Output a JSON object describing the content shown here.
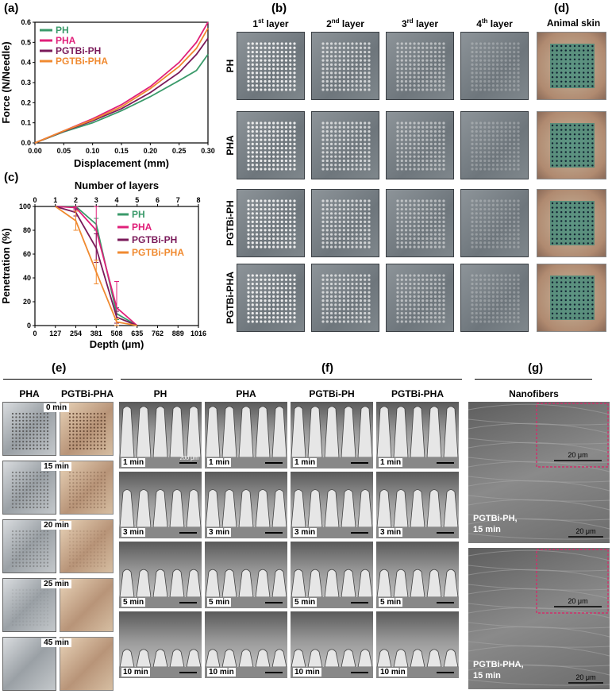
{
  "panels": {
    "a": "(a)",
    "b": "(b)",
    "c": "(c)",
    "d": "(d)",
    "e": "(e)",
    "f": "(f)",
    "g": "(g)"
  },
  "chart_a": {
    "type": "line",
    "title": "",
    "xlabel": "Displacement (mm)",
    "ylabel": "Force (N/Needle)",
    "xlim": [
      0,
      0.3
    ],
    "ylim": [
      0,
      0.6
    ],
    "xticks": [
      "0.00",
      "0.05",
      "0.10",
      "0.15",
      "0.20",
      "0.25",
      "0.30"
    ],
    "yticks": [
      "0.0",
      "0.1",
      "0.2",
      "0.3",
      "0.4",
      "0.5",
      "0.6"
    ],
    "legend_position": "top-left",
    "series": [
      {
        "name": "PH",
        "color": "#3a9a6a",
        "x": [
          0,
          0.05,
          0.1,
          0.15,
          0.2,
          0.25,
          0.28,
          0.3
        ],
        "y": [
          0,
          0.055,
          0.1,
          0.16,
          0.23,
          0.31,
          0.36,
          0.44
        ]
      },
      {
        "name": "PHA",
        "color": "#e0207a",
        "x": [
          0,
          0.05,
          0.1,
          0.15,
          0.2,
          0.25,
          0.28,
          0.3
        ],
        "y": [
          0,
          0.06,
          0.12,
          0.19,
          0.28,
          0.4,
          0.5,
          0.6
        ]
      },
      {
        "name": "PGTBi-PH",
        "color": "#7a1a5a",
        "x": [
          0,
          0.05,
          0.1,
          0.15,
          0.2,
          0.25,
          0.28,
          0.3
        ],
        "y": [
          0,
          0.058,
          0.11,
          0.17,
          0.25,
          0.35,
          0.44,
          0.52
        ]
      },
      {
        "name": "PGTBi-PHA",
        "color": "#f08a30",
        "x": [
          0,
          0.05,
          0.1,
          0.15,
          0.2,
          0.25,
          0.28,
          0.3
        ],
        "y": [
          0,
          0.06,
          0.115,
          0.18,
          0.27,
          0.38,
          0.47,
          0.57
        ]
      }
    ]
  },
  "chart_c": {
    "type": "line",
    "title": "",
    "xlabel": "Depth (μm)",
    "ylabel": "Penetration (%)",
    "x2label": "Number of layers",
    "xlim": [
      0,
      1016
    ],
    "ylim": [
      0,
      100
    ],
    "xticks": [
      "0",
      "127",
      "254",
      "381",
      "508",
      "635",
      "762",
      "889",
      "1016"
    ],
    "x2ticks": [
      "0",
      "1",
      "2",
      "3",
      "4",
      "5",
      "6",
      "7",
      "8"
    ],
    "yticks": [
      "0",
      "20",
      "40",
      "60",
      "80",
      "100"
    ],
    "legend_position": "top-right",
    "series": [
      {
        "name": "PH",
        "color": "#3a9a6a",
        "x": [
          127,
          254,
          381,
          508,
          635
        ],
        "y": [
          100,
          100,
          85,
          10,
          0
        ],
        "err": [
          0,
          2,
          5,
          5,
          0
        ]
      },
      {
        "name": "PHA",
        "color": "#e0207a",
        "x": [
          127,
          254,
          381,
          508,
          635
        ],
        "y": [
          100,
          99,
          80,
          15,
          0
        ],
        "err": [
          0,
          2,
          25,
          22,
          0
        ]
      },
      {
        "name": "PGTBi-PH",
        "color": "#7a1a5a",
        "x": [
          127,
          254,
          381,
          508,
          635
        ],
        "y": [
          100,
          95,
          65,
          7,
          0
        ],
        "err": [
          0,
          3,
          12,
          5,
          0
        ]
      },
      {
        "name": "PGTBi-PHA",
        "color": "#f08a30",
        "x": [
          127,
          254,
          381,
          508,
          635
        ],
        "y": [
          100,
          88,
          45,
          3,
          0
        ],
        "err": [
          0,
          8,
          10,
          3,
          0
        ]
      }
    ]
  },
  "b": {
    "cols": [
      "1",
      "2",
      "3",
      "4"
    ],
    "col_sup": [
      "st",
      "nd",
      "rd",
      "th"
    ],
    "col_word": "layer",
    "rows": [
      "PH",
      "PHA",
      "PGTBi-PH",
      "PGTBi-PHA"
    ],
    "dots": [
      12,
      10,
      7,
      3
    ]
  },
  "d": {
    "title": "Animal skin"
  },
  "e": {
    "cols": [
      "PHA",
      "PGTBi-PHA"
    ],
    "times": [
      "0 min",
      "15 min",
      "20 min",
      "25 min",
      "45 min"
    ]
  },
  "f": {
    "cols": [
      "PH",
      "PHA",
      "PGTBi-PH",
      "PGTBi-PHA"
    ],
    "times": [
      "1 min",
      "3 min",
      "5 min",
      "10 min"
    ],
    "scale_first": "200 μm"
  },
  "g": {
    "title": "Nanofibers",
    "images": [
      {
        "label1": "PGTBi-PH,",
        "label2": "15 min",
        "inset_scale": "20 μm",
        "scale": "20 μm"
      },
      {
        "label1": "PGTBi-PHA,",
        "label2": "15 min",
        "inset_scale": "20 μm",
        "scale": "20 μm"
      }
    ]
  }
}
